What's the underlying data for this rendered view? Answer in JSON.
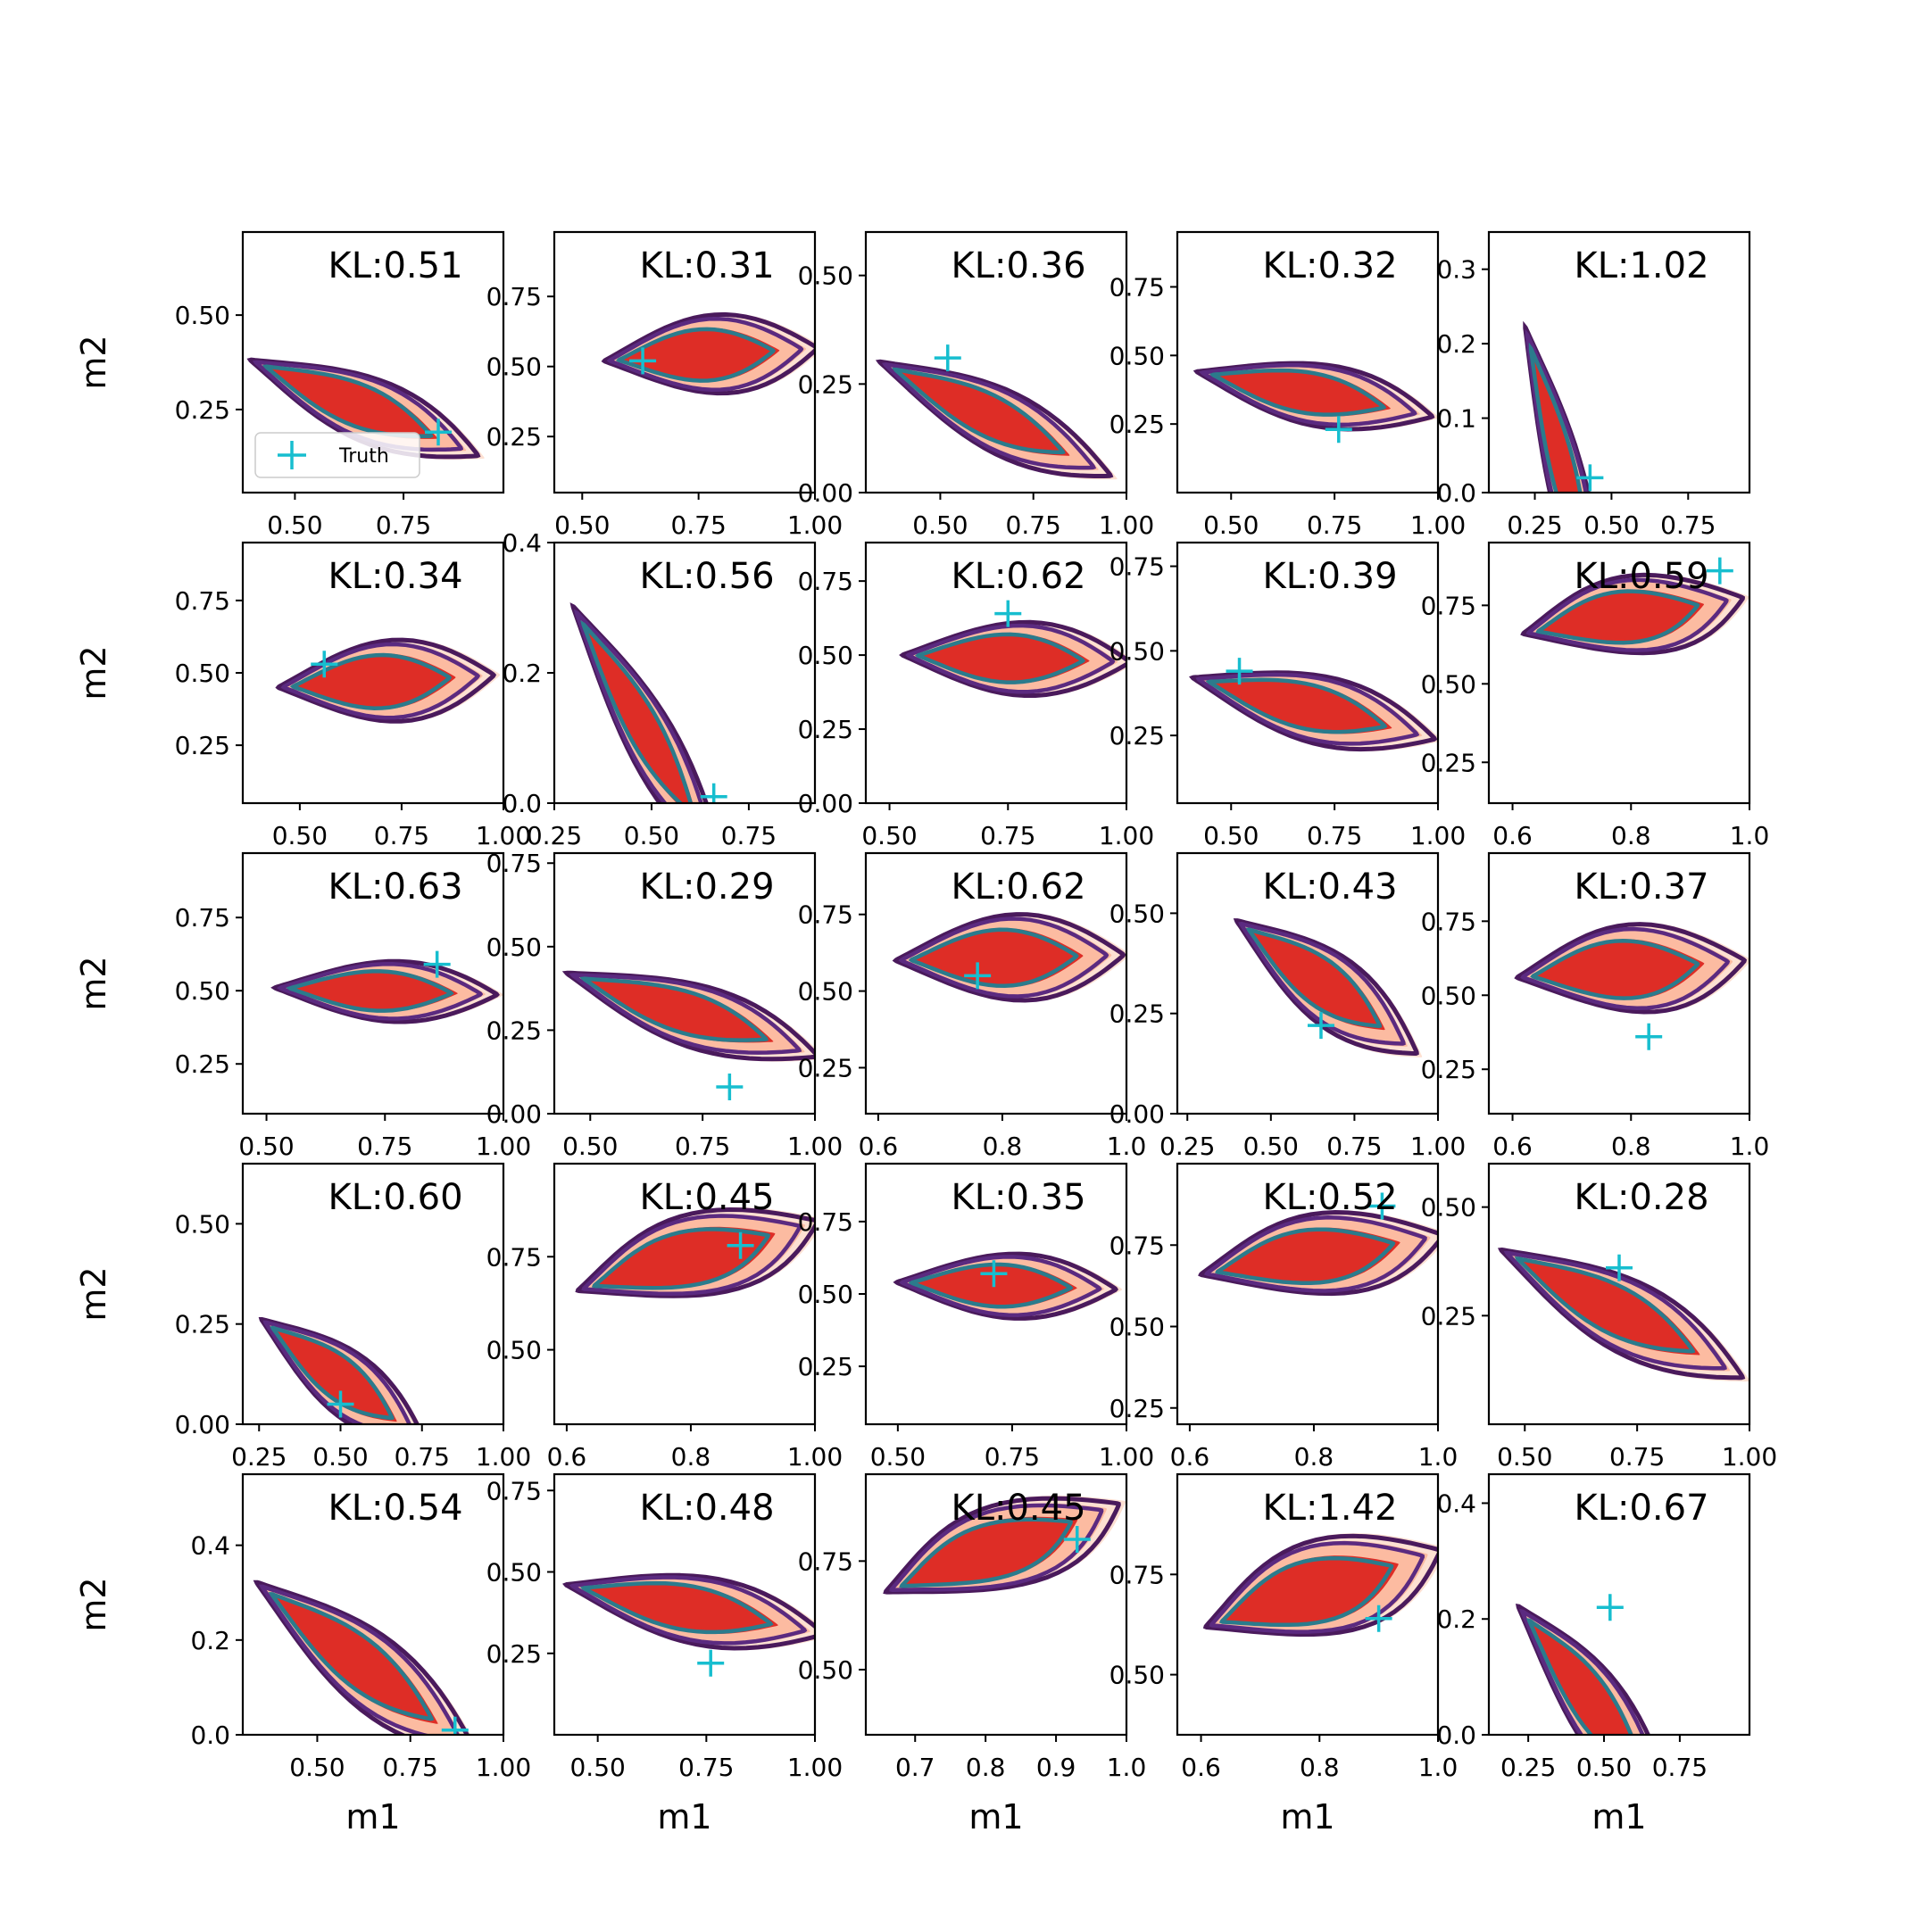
{
  "figure": {
    "xlabel": "m1",
    "ylabel": "m2",
    "legend": {
      "label": "Truth",
      "placement": "lower-left",
      "panel": 0
    },
    "colors": {
      "fill_outer": "#fde0d2",
      "fill_mid": "#fcbba1",
      "fill_inner": "#de2d26",
      "contour_dark": "#4a1a5c",
      "contour_mid": "#5b2a80",
      "contour_teal": "#2b7b8c",
      "truth": "#17becf"
    }
  },
  "chart_data": [
    {
      "type": "contour",
      "kl_label": "KL:0.51",
      "xlim": [
        0.38,
        0.98
      ],
      "ylim": [
        0.03,
        0.72
      ],
      "xticks": [
        {
          "v": 0.5,
          "l": "0.50"
        },
        {
          "v": 0.75,
          "l": "0.75"
        }
      ],
      "yticks": [
        {
          "v": 0.25,
          "l": "0.25"
        },
        {
          "v": 0.5,
          "l": "0.50"
        }
      ],
      "truth": [
        0.83,
        0.19
      ],
      "theta": -0.45,
      "anchor": [
        0.4,
        0.38
      ],
      "length": 0.57,
      "width": 0.2
    },
    {
      "type": "contour",
      "kl_label": "KL:0.31",
      "xlim": [
        0.44,
        1.0
      ],
      "ylim": [
        0.05,
        0.98
      ],
      "xticks": [
        {
          "v": 0.5,
          "l": "0.50"
        },
        {
          "v": 0.75,
          "l": "0.75"
        },
        {
          "v": 1.0,
          "l": "1.00"
        }
      ],
      "yticks": [
        {
          "v": 0.25,
          "l": "0.25"
        },
        {
          "v": 0.5,
          "l": "0.50"
        },
        {
          "v": 0.75,
          "l": "0.75"
        }
      ],
      "truth": [
        0.63,
        0.52
      ],
      "theta": 0.1,
      "anchor": [
        0.55,
        0.52
      ],
      "length": 0.45,
      "width": 0.34
    },
    {
      "type": "contour",
      "kl_label": "KL:0.36",
      "xlim": [
        0.3,
        1.0
      ],
      "ylim": [
        0.0,
        0.6
      ],
      "xticks": [
        {
          "v": 0.5,
          "l": "0.50"
        },
        {
          "v": 0.75,
          "l": "0.75"
        },
        {
          "v": 1.0,
          "l": "1.00"
        }
      ],
      "yticks": [
        {
          "v": 0.0,
          "l": "0.00"
        },
        {
          "v": 0.25,
          "l": "0.25"
        },
        {
          "v": 0.5,
          "l": "0.50"
        }
      ],
      "truth": [
        0.52,
        0.31
      ],
      "theta": -0.4,
      "anchor": [
        0.34,
        0.3
      ],
      "length": 0.66,
      "width": 0.18
    },
    {
      "type": "contour",
      "kl_label": "KL:0.32",
      "xlim": [
        0.37,
        1.0
      ],
      "ylim": [
        0.0,
        0.95
      ],
      "xticks": [
        {
          "v": 0.5,
          "l": "0.50"
        },
        {
          "v": 0.75,
          "l": "0.75"
        },
        {
          "v": 1.0,
          "l": "1.00"
        }
      ],
      "yticks": [
        {
          "v": 0.25,
          "l": "0.25"
        },
        {
          "v": 0.5,
          "l": "0.50"
        },
        {
          "v": 0.75,
          "l": "0.75"
        }
      ],
      "truth": [
        0.76,
        0.23
      ],
      "theta": -0.28,
      "anchor": [
        0.42,
        0.44
      ],
      "length": 0.58,
      "width": 0.27
    },
    {
      "type": "contour",
      "kl_label": "KL:1.02",
      "xlim": [
        0.1,
        0.95
      ],
      "ylim": [
        0.0,
        0.35
      ],
      "xticks": [
        {
          "v": 0.25,
          "l": "0.25"
        },
        {
          "v": 0.5,
          "l": "0.50"
        },
        {
          "v": 0.75,
          "l": "0.75"
        }
      ],
      "yticks": [
        {
          "v": 0.0,
          "l": "0.0"
        },
        {
          "v": 0.1,
          "l": "0.1"
        },
        {
          "v": 0.2,
          "l": "0.2"
        },
        {
          "v": 0.3,
          "l": "0.3"
        }
      ],
      "truth": [
        0.43,
        0.02
      ],
      "theta": -1.0,
      "anchor": [
        0.22,
        0.22
      ],
      "length": 0.48,
      "width": 0.13
    },
    {
      "type": "contour",
      "kl_label": "KL:0.34",
      "xlim": [
        0.36,
        1.0
      ],
      "ylim": [
        0.05,
        0.95
      ],
      "xticks": [
        {
          "v": 0.5,
          "l": "0.50"
        },
        {
          "v": 0.75,
          "l": "0.75"
        },
        {
          "v": 1.0,
          "l": "1.00"
        }
      ],
      "yticks": [
        {
          "v": 0.25,
          "l": "0.25"
        },
        {
          "v": 0.5,
          "l": "0.50"
        },
        {
          "v": 0.75,
          "l": "0.75"
        }
      ],
      "truth": [
        0.56,
        0.53
      ],
      "theta": 0.08,
      "anchor": [
        0.45,
        0.45
      ],
      "length": 0.52,
      "width": 0.34
    },
    {
      "type": "contour",
      "kl_label": "KL:0.56",
      "xlim": [
        0.25,
        0.92
      ],
      "ylim": [
        0.0,
        0.4
      ],
      "xticks": [
        {
          "v": 0.25,
          "l": "0.25"
        },
        {
          "v": 0.5,
          "l": "0.50"
        },
        {
          "v": 0.75,
          "l": "0.75"
        }
      ],
      "yticks": [
        {
          "v": 0.0,
          "l": "0.0"
        },
        {
          "v": 0.2,
          "l": "0.2"
        },
        {
          "v": 0.4,
          "l": "0.4"
        }
      ],
      "truth": [
        0.66,
        0.01
      ],
      "theta": -0.8,
      "anchor": [
        0.3,
        0.3
      ],
      "length": 0.55,
      "width": 0.13
    },
    {
      "type": "contour",
      "kl_label": "KL:0.62",
      "xlim": [
        0.45,
        1.0
      ],
      "ylim": [
        0.0,
        0.88
      ],
      "xticks": [
        {
          "v": 0.5,
          "l": "0.50"
        },
        {
          "v": 0.75,
          "l": "0.75"
        },
        {
          "v": 1.0,
          "l": "1.00"
        }
      ],
      "yticks": [
        {
          "v": 0.0,
          "l": "0.00"
        },
        {
          "v": 0.25,
          "l": "0.25"
        },
        {
          "v": 0.5,
          "l": "0.50"
        },
        {
          "v": 0.75,
          "l": "0.75"
        }
      ],
      "truth": [
        0.75,
        0.64
      ],
      "theta": -0.05,
      "anchor": [
        0.53,
        0.5
      ],
      "length": 0.47,
      "width": 0.3
    },
    {
      "type": "contour",
      "kl_label": "KL:0.39",
      "xlim": [
        0.37,
        1.0
      ],
      "ylim": [
        0.05,
        0.82
      ],
      "xticks": [
        {
          "v": 0.5,
          "l": "0.50"
        },
        {
          "v": 0.75,
          "l": "0.75"
        },
        {
          "v": 1.0,
          "l": "1.00"
        }
      ],
      "yticks": [
        {
          "v": 0.25,
          "l": "0.25"
        },
        {
          "v": 0.5,
          "l": "0.50"
        },
        {
          "v": 0.75,
          "l": "0.75"
        }
      ],
      "truth": [
        0.52,
        0.44
      ],
      "theta": -0.3,
      "anchor": [
        0.41,
        0.42
      ],
      "length": 0.6,
      "width": 0.24
    },
    {
      "type": "contour",
      "kl_label": "KL:0.59",
      "xlim": [
        0.56,
        1.0
      ],
      "ylim": [
        0.12,
        0.95
      ],
      "xticks": [
        {
          "v": 0.6,
          "l": "0.6"
        },
        {
          "v": 0.8,
          "l": "0.8"
        },
        {
          "v": 1.0,
          "l": "1.0"
        }
      ],
      "yticks": [
        {
          "v": 0.25,
          "l": "0.25"
        },
        {
          "v": 0.5,
          "l": "0.50"
        },
        {
          "v": 0.75,
          "l": "0.75"
        }
      ],
      "truth": [
        0.95,
        0.86
      ],
      "theta": 0.3,
      "anchor": [
        0.62,
        0.66
      ],
      "length": 0.38,
      "width": 0.3
    },
    {
      "type": "contour",
      "kl_label": "KL:0.63",
      "xlim": [
        0.45,
        1.0
      ],
      "ylim": [
        0.08,
        0.97
      ],
      "xticks": [
        {
          "v": 0.5,
          "l": "0.50"
        },
        {
          "v": 0.75,
          "l": "0.75"
        },
        {
          "v": 1.0,
          "l": "1.00"
        }
      ],
      "yticks": [
        {
          "v": 0.25,
          "l": "0.25"
        },
        {
          "v": 0.5,
          "l": "0.50"
        },
        {
          "v": 0.75,
          "l": "0.75"
        }
      ],
      "truth": [
        0.86,
        0.59
      ],
      "theta": -0.05,
      "anchor": [
        0.52,
        0.51
      ],
      "length": 0.46,
      "width": 0.25
    },
    {
      "type": "contour",
      "kl_label": "KL:0.29",
      "xlim": [
        0.42,
        1.0
      ],
      "ylim": [
        0.0,
        0.78
      ],
      "xticks": [
        {
          "v": 0.5,
          "l": "0.50"
        },
        {
          "v": 0.75,
          "l": "0.75"
        },
        {
          "v": 1.0,
          "l": "1.00"
        }
      ],
      "yticks": [
        {
          "v": 0.0,
          "l": "0.00"
        },
        {
          "v": 0.25,
          "l": "0.25"
        },
        {
          "v": 0.5,
          "l": "0.50"
        },
        {
          "v": 0.75,
          "l": "0.75"
        }
      ],
      "truth": [
        0.81,
        0.08
      ],
      "theta": -0.42,
      "anchor": [
        0.45,
        0.42
      ],
      "length": 0.6,
      "width": 0.22
    },
    {
      "type": "contour",
      "kl_label": "KL:0.62",
      "xlim": [
        0.58,
        1.0
      ],
      "ylim": [
        0.1,
        0.95
      ],
      "xticks": [
        {
          "v": 0.6,
          "l": "0.6"
        },
        {
          "v": 0.8,
          "l": "0.8"
        },
        {
          "v": 1.0,
          "l": "1.0"
        }
      ],
      "yticks": [
        {
          "v": 0.25,
          "l": "0.25"
        },
        {
          "v": 0.5,
          "l": "0.50"
        },
        {
          "v": 0.75,
          "l": "0.75"
        }
      ],
      "truth": [
        0.76,
        0.55
      ],
      "theta": 0.05,
      "anchor": [
        0.63,
        0.6
      ],
      "length": 0.36,
      "width": 0.34
    },
    {
      "type": "contour",
      "kl_label": "KL:0.43",
      "xlim": [
        0.22,
        1.0
      ],
      "ylim": [
        0.0,
        0.65
      ],
      "xticks": [
        {
          "v": 0.25,
          "l": "0.25"
        },
        {
          "v": 0.5,
          "l": "0.50"
        },
        {
          "v": 0.75,
          "l": "0.75"
        },
        {
          "v": 1.0,
          "l": "1.00"
        }
      ],
      "yticks": [
        {
          "v": 0.0,
          "l": "0.00"
        },
        {
          "v": 0.25,
          "l": "0.25"
        },
        {
          "v": 0.5,
          "l": "0.50"
        }
      ],
      "truth": [
        0.65,
        0.22
      ],
      "theta": -0.55,
      "anchor": [
        0.4,
        0.48
      ],
      "length": 0.62,
      "width": 0.22
    },
    {
      "type": "contour",
      "kl_label": "KL:0.37",
      "xlim": [
        0.56,
        1.0
      ],
      "ylim": [
        0.1,
        0.98
      ],
      "xticks": [
        {
          "v": 0.6,
          "l": "0.6"
        },
        {
          "v": 0.8,
          "l": "0.8"
        },
        {
          "v": 1.0,
          "l": "1.0"
        }
      ],
      "yticks": [
        {
          "v": 0.25,
          "l": "0.25"
        },
        {
          "v": 0.5,
          "l": "0.50"
        },
        {
          "v": 0.75,
          "l": "0.75"
        }
      ],
      "truth": [
        0.83,
        0.36
      ],
      "theta": 0.15,
      "anchor": [
        0.61,
        0.56
      ],
      "length": 0.38,
      "width": 0.36
    },
    {
      "type": "contour",
      "kl_label": "KL:0.60",
      "xlim": [
        0.2,
        1.0
      ],
      "ylim": [
        0.0,
        0.65
      ],
      "xticks": [
        {
          "v": 0.25,
          "l": "0.25"
        },
        {
          "v": 0.5,
          "l": "0.50"
        },
        {
          "v": 0.75,
          "l": "0.75"
        },
        {
          "v": 1.0,
          "l": "1.00"
        }
      ],
      "yticks": [
        {
          "v": 0.0,
          "l": "0.00"
        },
        {
          "v": 0.25,
          "l": "0.25"
        },
        {
          "v": 0.5,
          "l": "0.50"
        }
      ],
      "truth": [
        0.5,
        0.05
      ],
      "theta": -0.55,
      "anchor": [
        0.26,
        0.26
      ],
      "length": 0.58,
      "width": 0.2
    },
    {
      "type": "contour",
      "kl_label": "KL:0.45",
      "xlim": [
        0.58,
        1.0
      ],
      "ylim": [
        0.3,
        1.0
      ],
      "xticks": [
        {
          "v": 0.6,
          "l": "0.6"
        },
        {
          "v": 0.8,
          "l": "0.8"
        },
        {
          "v": 1.0,
          "l": "1.00"
        }
      ],
      "yticks": [
        {
          "v": 0.5,
          "l": "0.50"
        },
        {
          "v": 0.75,
          "l": "0.75"
        }
      ],
      "truth": [
        0.88,
        0.78
      ],
      "theta": 0.45,
      "anchor": [
        0.62,
        0.66
      ],
      "length": 0.42,
      "width": 0.26
    },
    {
      "type": "contour",
      "kl_label": "KL:0.35",
      "xlim": [
        0.43,
        1.0
      ],
      "ylim": [
        0.05,
        0.95
      ],
      "xticks": [
        {
          "v": 0.5,
          "l": "0.50"
        },
        {
          "v": 0.75,
          "l": "0.75"
        },
        {
          "v": 1.0,
          "l": "1.00"
        }
      ],
      "yticks": [
        {
          "v": 0.25,
          "l": "0.25"
        },
        {
          "v": 0.5,
          "l": "0.50"
        },
        {
          "v": 0.75,
          "l": "0.75"
        }
      ],
      "truth": [
        0.71,
        0.57
      ],
      "theta": -0.05,
      "anchor": [
        0.5,
        0.54
      ],
      "length": 0.47,
      "width": 0.27
    },
    {
      "type": "contour",
      "kl_label": "KL:0.52",
      "xlim": [
        0.58,
        1.0
      ],
      "ylim": [
        0.2,
        1.0
      ],
      "xticks": [
        {
          "v": 0.6,
          "l": "0.6"
        },
        {
          "v": 0.8,
          "l": "0.8"
        },
        {
          "v": 1.0,
          "l": "1.0"
        }
      ],
      "yticks": [
        {
          "v": 0.25,
          "l": "0.25"
        },
        {
          "v": 0.5,
          "l": "0.50"
        },
        {
          "v": 0.75,
          "l": "0.75"
        }
      ],
      "truth": [
        0.91,
        0.87
      ],
      "theta": 0.3,
      "anchor": [
        0.62,
        0.66
      ],
      "length": 0.4,
      "width": 0.3
    },
    {
      "type": "contour",
      "kl_label": "KL:0.28",
      "xlim": [
        0.42,
        1.0
      ],
      "ylim": [
        0.0,
        0.6
      ],
      "xticks": [
        {
          "v": 0.5,
          "l": "0.50"
        },
        {
          "v": 0.75,
          "l": "0.75"
        },
        {
          "v": 1.0,
          "l": "1.00"
        }
      ],
      "yticks": [
        {
          "v": 0.25,
          "l": "0.25"
        },
        {
          "v": 0.5,
          "l": "0.50"
        }
      ],
      "truth": [
        0.71,
        0.36
      ],
      "theta": -0.5,
      "anchor": [
        0.45,
        0.4
      ],
      "length": 0.6,
      "width": 0.2
    },
    {
      "type": "contour",
      "kl_label": "KL:0.54",
      "xlim": [
        0.3,
        1.0
      ],
      "ylim": [
        0.0,
        0.55
      ],
      "xticks": [
        {
          "v": 0.5,
          "l": "0.50"
        },
        {
          "v": 0.75,
          "l": "0.75"
        },
        {
          "v": 1.0,
          "l": "1.00"
        }
      ],
      "yticks": [
        {
          "v": 0.0,
          "l": "0.0"
        },
        {
          "v": 0.2,
          "l": "0.2"
        },
        {
          "v": 0.4,
          "l": "0.4"
        }
      ],
      "truth": [
        0.87,
        0.01
      ],
      "theta": -0.55,
      "anchor": [
        0.34,
        0.32
      ],
      "length": 0.68,
      "width": 0.2
    },
    {
      "type": "contour",
      "kl_label": "KL:0.48",
      "xlim": [
        0.4,
        1.0
      ],
      "ylim": [
        0.0,
        0.8
      ],
      "xticks": [
        {
          "v": 0.5,
          "l": "0.50"
        },
        {
          "v": 0.75,
          "l": "0.75"
        },
        {
          "v": 1.0,
          "l": "1.00"
        }
      ],
      "yticks": [
        {
          "v": 0.25,
          "l": "0.25"
        },
        {
          "v": 0.5,
          "l": "0.50"
        },
        {
          "v": 0.75,
          "l": "0.75"
        }
      ],
      "truth": [
        0.76,
        0.22
      ],
      "theta": -0.25,
      "anchor": [
        0.43,
        0.46
      ],
      "length": 0.6,
      "width": 0.25
    },
    {
      "type": "contour",
      "kl_label": "KL:0.45",
      "xlim": [
        0.63,
        1.0
      ],
      "ylim": [
        0.35,
        0.95
      ],
      "xticks": [
        {
          "v": 0.7,
          "l": "0.7"
        },
        {
          "v": 0.8,
          "l": "0.8"
        },
        {
          "v": 0.9,
          "l": "0.9"
        },
        {
          "v": 1.0,
          "l": "1.0"
        }
      ],
      "yticks": [
        {
          "v": 0.5,
          "l": "0.50"
        },
        {
          "v": 0.75,
          "l": "0.75"
        }
      ],
      "truth": [
        0.93,
        0.8
      ],
      "theta": 0.55,
      "anchor": [
        0.66,
        0.68
      ],
      "length": 0.38,
      "width": 0.22
    },
    {
      "type": "contour",
      "kl_label": "KL:1.42",
      "xlim": [
        0.56,
        1.0
      ],
      "ylim": [
        0.35,
        1.0
      ],
      "xticks": [
        {
          "v": 0.6,
          "l": "0.6"
        },
        {
          "v": 0.8,
          "l": "0.8"
        },
        {
          "v": 1.0,
          "l": "1.0"
        }
      ],
      "yticks": [
        {
          "v": 0.5,
          "l": "0.50"
        },
        {
          "v": 0.75,
          "l": "0.75"
        }
      ],
      "truth": [
        0.9,
        0.64
      ],
      "theta": 0.45,
      "anchor": [
        0.61,
        0.62
      ],
      "length": 0.43,
      "width": 0.28
    },
    {
      "type": "contour",
      "kl_label": "KL:0.67",
      "xlim": [
        0.12,
        0.98
      ],
      "ylim": [
        0.0,
        0.45
      ],
      "xticks": [
        {
          "v": 0.25,
          "l": "0.25"
        },
        {
          "v": 0.5,
          "l": "0.50"
        },
        {
          "v": 0.75,
          "l": "0.75"
        }
      ],
      "yticks": [
        {
          "v": 0.0,
          "l": "0.0"
        },
        {
          "v": 0.2,
          "l": "0.2"
        },
        {
          "v": 0.4,
          "l": "0.4"
        }
      ],
      "truth": [
        0.52,
        0.22
      ],
      "theta": -0.6,
      "anchor": [
        0.22,
        0.22
      ],
      "length": 0.62,
      "width": 0.18
    }
  ]
}
